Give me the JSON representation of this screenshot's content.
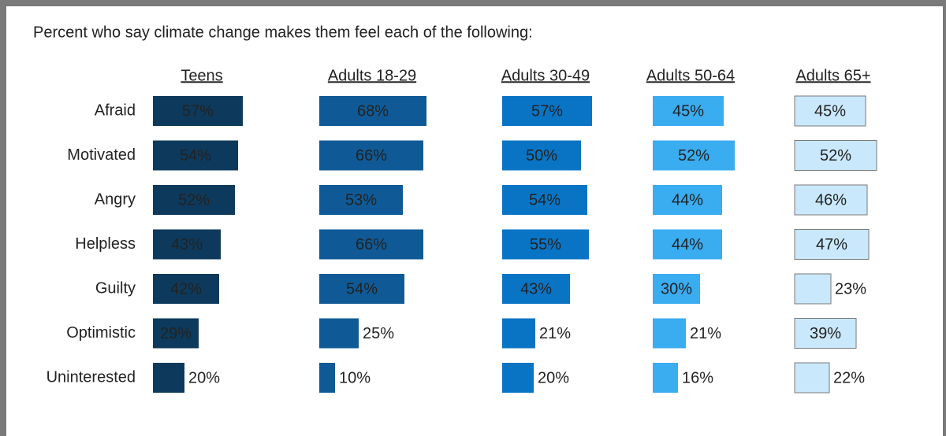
{
  "chart_data": {
    "type": "bar",
    "orientation": "horizontal",
    "title": "Percent who say climate change makes them feel each of the following:",
    "categories": [
      "Afraid",
      "Motivated",
      "Angry",
      "Helpless",
      "Guilty",
      "Optimistic",
      "Uninterested"
    ],
    "series": [
      {
        "name": "Teens",
        "color": "#0d3a5c",
        "values": [
          57,
          54,
          52,
          43,
          42,
          29,
          20
        ],
        "value_labels": [
          "57%",
          "54%",
          "52%",
          "43%",
          "42%",
          "29%",
          "20%"
        ]
      },
      {
        "name": "Adults 18-29",
        "color": "#0f5a96",
        "values": [
          68,
          66,
          53,
          66,
          54,
          25,
          10
        ],
        "value_labels": [
          "68%",
          "66%",
          "53%",
          "66%",
          "54%",
          "25%",
          "10%"
        ]
      },
      {
        "name": "Adults 30-49",
        "color": "#0a74c4",
        "values": [
          57,
          50,
          54,
          55,
          43,
          21,
          20
        ],
        "value_labels": [
          "57%",
          "50%",
          "54%",
          "55%",
          "43%",
          "21%",
          "20%"
        ]
      },
      {
        "name": "Adults 50-64",
        "color": "#3aacf0",
        "values": [
          45,
          52,
          44,
          44,
          30,
          21,
          16
        ],
        "value_labels": [
          "45%",
          "52%",
          "44%",
          "44%",
          "30%",
          "21%",
          "16%"
        ]
      },
      {
        "name": "Adults 65+",
        "color": "#c9e8fb",
        "values": [
          45,
          52,
          46,
          47,
          23,
          39,
          22
        ],
        "value_labels": [
          "45%",
          "52%",
          "46%",
          "47%",
          "23%",
          "39%",
          "22%"
        ]
      }
    ]
  }
}
